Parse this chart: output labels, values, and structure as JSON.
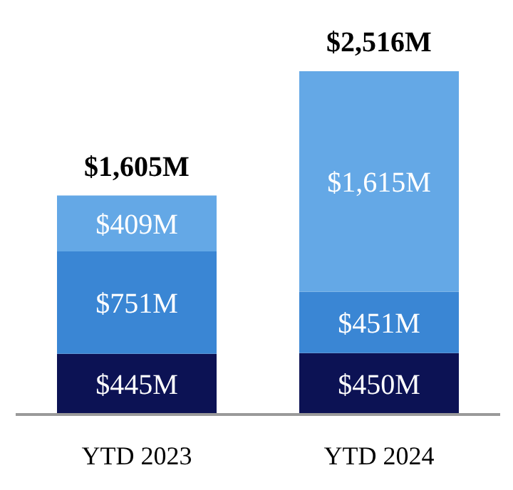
{
  "chart_data": {
    "type": "bar",
    "stacked": true,
    "categories": [
      "YTD 2023",
      "YTD 2024"
    ],
    "series": [
      {
        "color": "#0c1254",
        "values": [
          445,
          450
        ],
        "value_labels": [
          "$445M",
          "$450M"
        ]
      },
      {
        "color": "#3a86d4",
        "values": [
          751,
          451
        ],
        "value_labels": [
          "$751M",
          "$451M"
        ]
      },
      {
        "color": "#64a8e6",
        "values": [
          409,
          1615
        ],
        "value_labels": [
          "$409M",
          "$1,615M"
        ]
      }
    ],
    "totals": [
      "$1,605M",
      "$2,516M"
    ]
  }
}
